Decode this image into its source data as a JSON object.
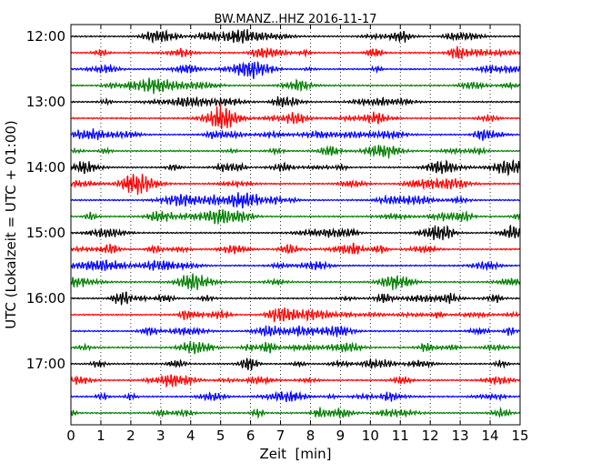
{
  "chart_data": {
    "type": "line",
    "title": "BW.MANZ..HHZ 2016-11-17",
    "xlabel": "Zeit  [min]",
    "ylabel": "UTC (Lokalzeit = UTC + 01:00)",
    "xlim": [
      0,
      15
    ],
    "x_ticks": [
      "0",
      "1",
      "2",
      "3",
      "4",
      "5",
      "6",
      "7",
      "8",
      "9",
      "10",
      "11",
      "12",
      "13",
      "14",
      "15"
    ],
    "y_tick_labels": [
      "12:00",
      "13:00",
      "14:00",
      "15:00",
      "16:00",
      "17:00"
    ],
    "traces_start": "12:00",
    "trace_interval_min": 15,
    "trace_count": 24,
    "trace_colors": [
      "#000000",
      "#ff0000",
      "#0000ff",
      "#007f00"
    ],
    "grid": "vertical dotted at each minute",
    "signal": "continuous seismic noise, roughly constant amplitude"
  }
}
